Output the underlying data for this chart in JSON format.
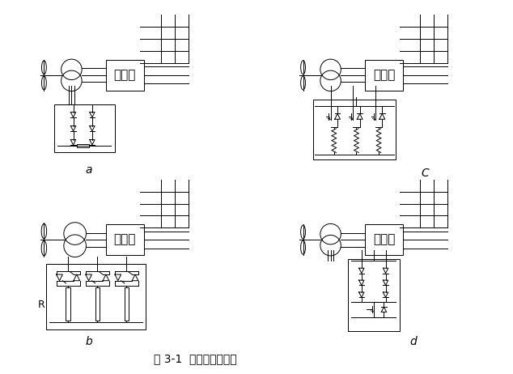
{
  "title": "图 3-1  主动式撬棒电路",
  "panel_labels": [
    "a",
    "b",
    "C",
    "d"
  ],
  "converter_label": "变流器",
  "background_color": "#ffffff",
  "line_color": "#000000",
  "title_fontsize": 10,
  "label_fontsize": 10,
  "converter_fontsize": 11
}
